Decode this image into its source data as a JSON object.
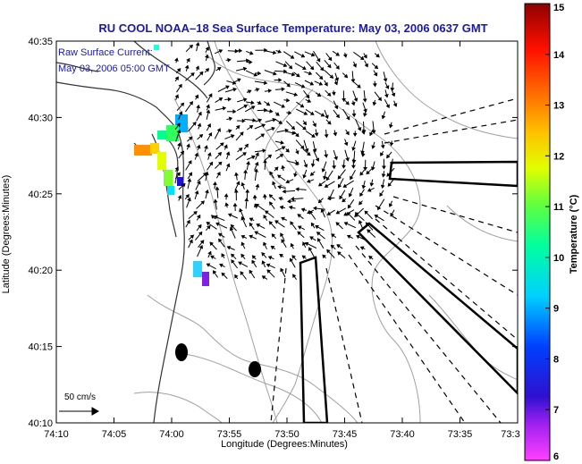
{
  "chart_data": {
    "type": "map",
    "title": "RU COOL  NOAA–18  Sea Surface Temperature:  May 03, 2006 0637 GMT",
    "xlabel": "Longitude (Degrees:Minutes)",
    "ylabel": "Latitude (Degrees:Minutes)",
    "x_ticks": [
      "74:10",
      "74:05",
      "74:00",
      "73:55",
      "73:50",
      "73:45",
      "73:40",
      "73:35",
      "73:3"
    ],
    "y_ticks": [
      "40:35",
      "40:30",
      "40:25",
      "40:20",
      "40:15",
      "40:10"
    ],
    "annotations": [
      "Raw Surface Current:",
      "May 03, 2006 05:00 GMT"
    ],
    "vector_scale_label": "50 cm/s",
    "colorbar": {
      "label": "Temperature (°C)",
      "min": 6,
      "max": 15,
      "ticks": [
        "15",
        "14",
        "13",
        "12",
        "11",
        "10",
        "9",
        "8",
        "7",
        "6"
      ],
      "colormap": "jet-magenta"
    },
    "grid": false
  },
  "colors": {
    "title_color": "#1a1aa6",
    "annotation_color": "#1a1aa6",
    "coast_color": "#333333",
    "contour_color": "#a0a0a0",
    "vector_color": "#000000"
  }
}
